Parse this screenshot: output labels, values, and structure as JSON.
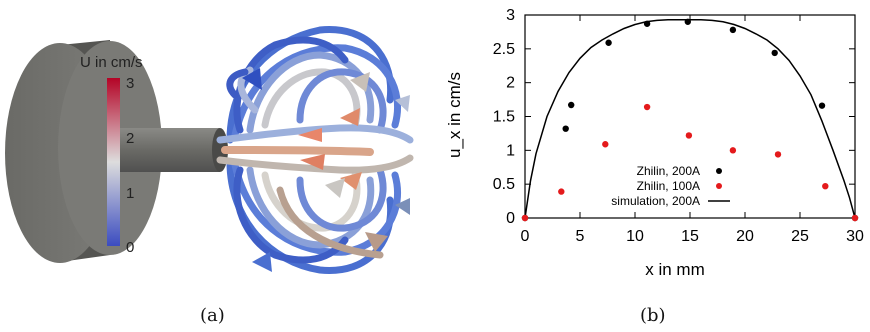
{
  "panels": {
    "a_label": "(a)",
    "b_label": "(b)"
  },
  "colorbar": {
    "title": "U in cm/s",
    "ticks": [
      "0",
      "1",
      "2",
      "3"
    ],
    "colors": [
      "#3b4cc0",
      "#dddddd",
      "#b40426"
    ]
  },
  "chart_data": {
    "type": "scatter",
    "xlabel": "x in mm",
    "ylabel": "u_x in cm/s",
    "xlim": [
      0,
      30
    ],
    "ylim": [
      0,
      3
    ],
    "xticks": [
      "0",
      "5",
      "10",
      "15",
      "20",
      "25",
      "30"
    ],
    "yticks": [
      "0",
      "0.5",
      "1",
      "1.5",
      "2",
      "2.5",
      "3"
    ],
    "legend_position": "bottom-right",
    "series": [
      {
        "name": "Zhilin, 200A",
        "type": "scatter",
        "color": "#000000",
        "points": [
          [
            0,
            0
          ],
          [
            3.7,
            1.32
          ],
          [
            4.2,
            1.67
          ],
          [
            7.6,
            2.59
          ],
          [
            11.1,
            2.87
          ],
          [
            14.8,
            2.9
          ],
          [
            18.9,
            2.78
          ],
          [
            22.7,
            2.44
          ],
          [
            27.0,
            1.66
          ],
          [
            30,
            0
          ]
        ]
      },
      {
        "name": "Zhilin, 100A",
        "type": "scatter",
        "color": "#e41a1c",
        "points": [
          [
            0,
            0
          ],
          [
            3.3,
            0.39
          ],
          [
            7.3,
            1.09
          ],
          [
            11.1,
            1.64
          ],
          [
            14.9,
            1.22
          ],
          [
            18.9,
            1.0
          ],
          [
            23.0,
            0.94
          ],
          [
            27.3,
            0.47
          ],
          [
            30,
            0
          ]
        ]
      },
      {
        "name": "simulation, 200A",
        "type": "line",
        "color": "#000000",
        "points": [
          [
            0,
            0
          ],
          [
            0.5,
            0.55
          ],
          [
            1,
            0.95
          ],
          [
            2,
            1.5
          ],
          [
            3,
            1.87
          ],
          [
            4,
            2.15
          ],
          [
            5,
            2.36
          ],
          [
            6,
            2.52
          ],
          [
            7,
            2.63
          ],
          [
            8,
            2.72
          ],
          [
            9,
            2.8
          ],
          [
            10,
            2.86
          ],
          [
            11,
            2.9
          ],
          [
            12,
            2.92
          ],
          [
            13,
            2.93
          ],
          [
            14,
            2.93
          ],
          [
            15,
            2.93
          ],
          [
            16,
            2.93
          ],
          [
            17,
            2.92
          ],
          [
            18,
            2.9
          ],
          [
            19,
            2.86
          ],
          [
            20,
            2.8
          ],
          [
            21,
            2.72
          ],
          [
            22,
            2.63
          ],
          [
            23,
            2.5
          ],
          [
            24,
            2.33
          ],
          [
            25,
            2.1
          ],
          [
            26,
            1.82
          ],
          [
            27,
            1.43
          ],
          [
            28,
            1.0
          ],
          [
            29,
            0.55
          ],
          [
            29.5,
            0.3
          ],
          [
            30,
            0
          ]
        ]
      }
    ]
  }
}
